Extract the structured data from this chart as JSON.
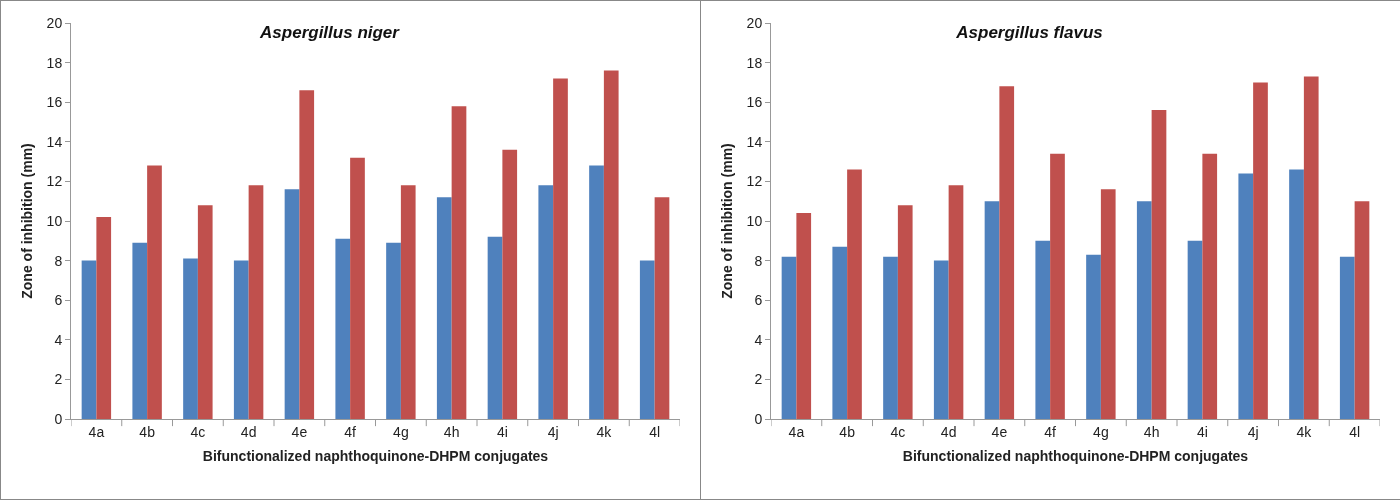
{
  "chart_data": [
    {
      "type": "bar",
      "title": "Aspergillus niger",
      "xlabel": "Bifunctionalized naphthoquinone-DHPM conjugates",
      "ylabel": "Zone of inhibition (mm)",
      "categories": [
        "4a",
        "4b",
        "4c",
        "4d",
        "4e",
        "4f",
        "4g",
        "4h",
        "4i",
        "4j",
        "4k",
        "4l"
      ],
      "series": [
        {
          "color": "#4f81bd",
          "values": [
            8.0,
            8.9,
            8.1,
            8.0,
            11.6,
            9.1,
            8.9,
            11.2,
            9.2,
            11.8,
            12.8,
            8.0
          ]
        },
        {
          "color": "#c0504d",
          "values": [
            10.2,
            12.8,
            10.8,
            11.8,
            16.6,
            13.2,
            11.8,
            15.8,
            13.6,
            17.2,
            17.6,
            11.2
          ]
        }
      ],
      "ylim": [
        0,
        20
      ],
      "yticks": [
        0,
        2,
        4,
        6,
        8,
        10,
        12,
        14,
        16,
        18,
        20
      ],
      "grid": false
    },
    {
      "type": "bar",
      "title": "Aspergillus flavus",
      "xlabel": "Bifunctionalized naphthoquinone-DHPM conjugates",
      "ylabel": "Zone of inhibition (mm)",
      "categories": [
        "4a",
        "4b",
        "4c",
        "4d",
        "4e",
        "4f",
        "4g",
        "4h",
        "4i",
        "4j",
        "4k",
        "4l"
      ],
      "series": [
        {
          "color": "#4f81bd",
          "values": [
            8.2,
            8.7,
            8.2,
            8.0,
            11.0,
            9.0,
            8.3,
            11.0,
            9.0,
            12.4,
            12.6,
            8.2
          ]
        },
        {
          "color": "#c0504d",
          "values": [
            10.4,
            12.6,
            10.8,
            11.8,
            16.8,
            13.4,
            11.6,
            15.6,
            13.4,
            17.0,
            17.3,
            11.0
          ]
        }
      ],
      "ylim": [
        0,
        20
      ],
      "yticks": [
        0,
        2,
        4,
        6,
        8,
        10,
        12,
        14,
        16,
        18,
        20
      ],
      "grid": false
    }
  ]
}
